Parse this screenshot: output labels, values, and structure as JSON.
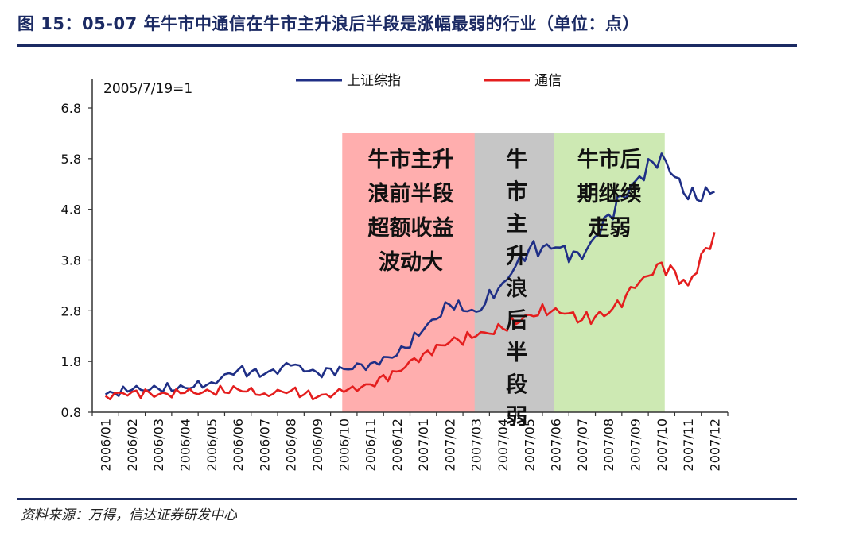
{
  "title": "图 15：05-07 年牛市中通信在牛市主升浪后半段是涨幅最弱的行业（单位：点）",
  "source": "资料来源：万得，信达证券研发中心",
  "chart_data": {
    "type": "line",
    "base_label": "2005/7/19=1",
    "ylim": [
      0.8,
      6.8
    ],
    "yticks": [
      "0.8",
      "1.8",
      "2.8",
      "3.8",
      "4.8",
      "5.8",
      "6.8"
    ],
    "categories": [
      "2006/01",
      "2006/02",
      "2006/03",
      "2006/04",
      "2006/05",
      "2006/06",
      "2006/07",
      "2006/08",
      "2006/09",
      "2006/10",
      "2006/11",
      "2006/12",
      "2007/01",
      "2007/02",
      "2007/03",
      "2007/04",
      "2007/05",
      "2007/06",
      "2007/07",
      "2007/08",
      "2007/09",
      "2007/10",
      "2007/11",
      "2007/12"
    ],
    "series": [
      {
        "name": "上证综指",
        "color": "#1f2f86",
        "values": [
          1.15,
          1.24,
          1.26,
          1.28,
          1.39,
          1.63,
          1.55,
          1.72,
          1.58,
          1.65,
          1.76,
          1.92,
          2.42,
          2.92,
          2.78,
          3.35,
          4.02,
          4.05,
          3.82,
          4.7,
          5.35,
          5.9,
          5.0,
          5.15
        ]
      },
      {
        "name": "通信",
        "color": "#e41e1e",
        "values": [
          1.12,
          1.2,
          1.15,
          1.18,
          1.2,
          1.25,
          1.17,
          1.22,
          1.1,
          1.2,
          1.35,
          1.6,
          1.95,
          2.18,
          2.3,
          2.45,
          2.72,
          2.85,
          2.62,
          2.75,
          3.25,
          3.75,
          3.3,
          4.35
        ]
      }
    ],
    "shaded_regions": [
      {
        "start": "2006/10",
        "end": "2007/03",
        "color": "#ffaeae",
        "label_lines": [
          "牛市主升",
          "浪前半段",
          "超额收益",
          "波动大"
        ]
      },
      {
        "start": "2007/03",
        "end": "2007/06",
        "color": "#c6c6c6",
        "label_lines": [
          "牛",
          "市",
          "主",
          "升",
          "浪",
          "后",
          "半",
          "段",
          "弱"
        ]
      },
      {
        "start": "2007/06",
        "end": "2007/10",
        "color": "#cde9b3",
        "label_lines": [
          "牛市后",
          "期继续",
          "走弱"
        ]
      }
    ]
  }
}
